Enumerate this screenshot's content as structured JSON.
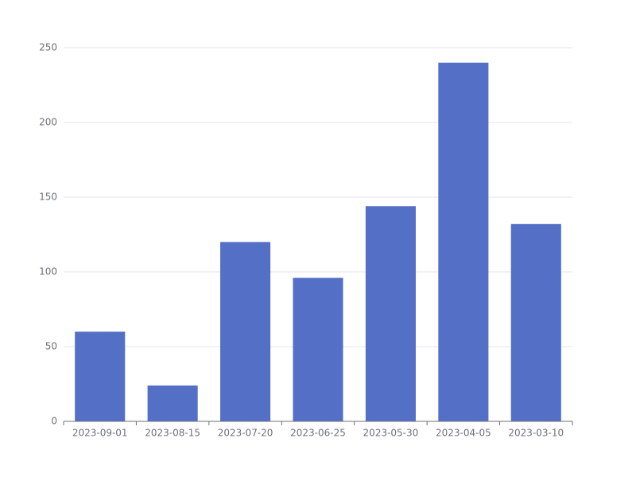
{
  "chart_data": {
    "type": "bar",
    "categories": [
      "2023-09-01",
      "2023-08-15",
      "2023-07-20",
      "2023-06-25",
      "2023-05-30",
      "2023-04-05",
      "2023-03-10"
    ],
    "values": [
      60,
      24,
      120,
      96,
      144,
      240,
      132
    ],
    "color": "#5470c6",
    "ylim": [
      0,
      250
    ],
    "yticks": [
      0,
      50,
      100,
      150,
      200,
      250
    ],
    "grid": true
  }
}
